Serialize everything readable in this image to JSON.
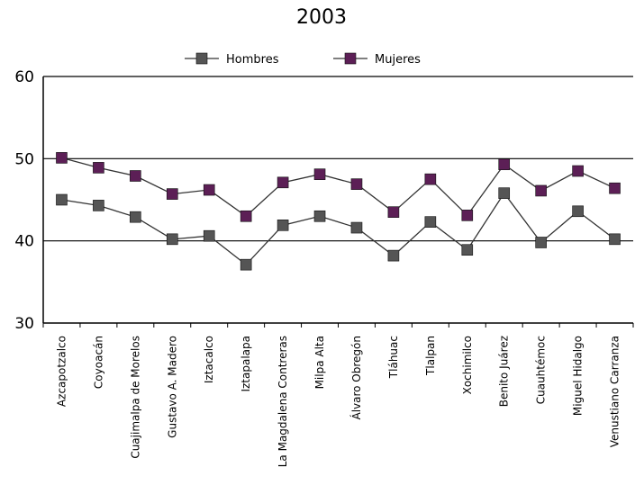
{
  "chart_data": {
    "type": "line",
    "title": "2003",
    "xlabel": "",
    "ylabel": "",
    "ylim": [
      30,
      60
    ],
    "yticks": [
      "30",
      "40",
      "50",
      "60"
    ],
    "grid": "horizontal",
    "legend_position": "top-center",
    "categories": [
      "Azcapotzalco",
      "Coyoacán",
      "Cuajimalpa de Morelos",
      "Gustavo A. Madero",
      "Iztacalco",
      "Iztapalapa",
      "La Magdalena Contreras",
      "Milpa Alta",
      "Álvaro Obregón",
      "Tláhuac",
      "Tlalpan",
      "Xochimilco",
      "Benito Juárez",
      "Cuauhtémoc",
      "Miguel Hidalgo",
      "Venustiano Carranza"
    ],
    "series": [
      {
        "name": "Hombres",
        "color": "#555555",
        "values": [
          45.0,
          44.3,
          42.9,
          40.2,
          40.6,
          37.1,
          41.9,
          43.0,
          41.6,
          38.2,
          42.3,
          38.9,
          45.8,
          39.8,
          43.6,
          40.2
        ]
      },
      {
        "name": "Mujeres",
        "color": "#5c1f56",
        "values": [
          50.1,
          48.9,
          47.9,
          45.7,
          46.2,
          43.0,
          47.1,
          48.1,
          46.9,
          43.5,
          47.5,
          43.1,
          49.3,
          46.1,
          48.5,
          46.4
        ]
      }
    ]
  }
}
